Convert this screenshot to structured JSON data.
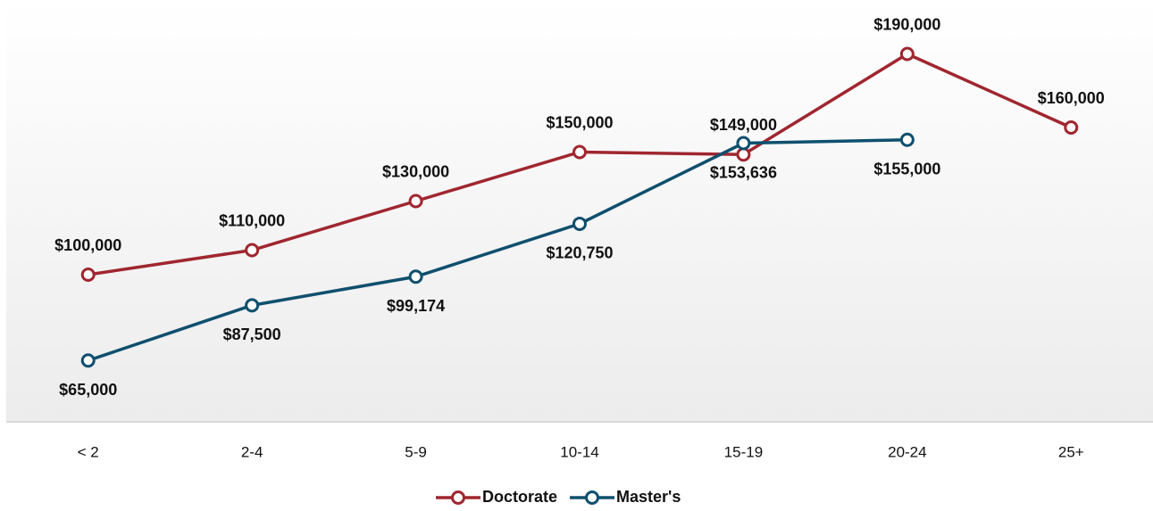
{
  "chart_data": {
    "type": "line",
    "categories": [
      "< 2",
      "2-4",
      "5-9",
      "10-14",
      "15-19",
      "20-24",
      "25+"
    ],
    "series": [
      {
        "name": "Doctorate",
        "color": "#a0262f",
        "values": [
          100000,
          110000,
          130000,
          150000,
          149000,
          190000,
          160000
        ],
        "value_labels": [
          "$100,000",
          "$110,000",
          "$130,000",
          "$150,000",
          "$149,000",
          "$190,000",
          "$160,000"
        ]
      },
      {
        "name": "Master's",
        "color": "#0f4f6e",
        "values": [
          65000,
          87500,
          99174,
          120750,
          153636,
          155000,
          null
        ],
        "value_labels": [
          "$65,000",
          "$87,500",
          "$99,174",
          "$120,750",
          "$153,636",
          "$155,000",
          null
        ]
      }
    ],
    "ylim": [
      40000,
      212000
    ],
    "legend": "bottom"
  }
}
